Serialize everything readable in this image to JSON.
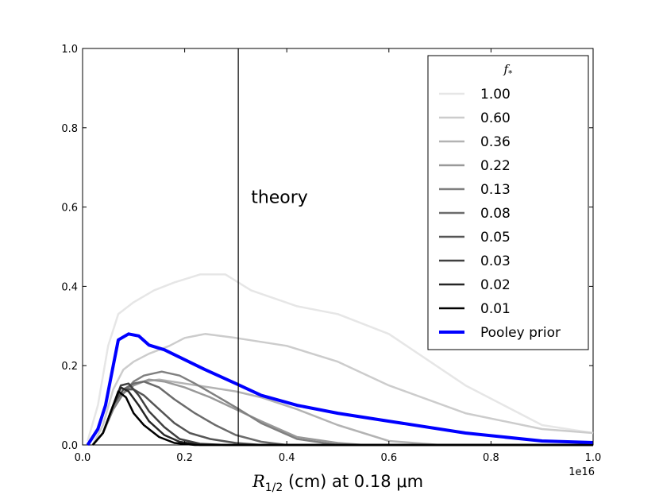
{
  "chart_data": {
    "type": "line",
    "xlabel_parts": {
      "symbol": "R",
      "subscript": "1/2",
      "rest": " (cm) at 0.18 μm"
    },
    "x_offset_text": "1e16",
    "xlim": [
      0.0,
      1.0
    ],
    "ylim": [
      0.0,
      1.0
    ],
    "xticks": [
      "0.0",
      "0.2",
      "0.4",
      "0.6",
      "0.8",
      "1.0"
    ],
    "yticks": [
      "0.0",
      "0.2",
      "0.4",
      "0.6",
      "0.8",
      "1.0"
    ],
    "annotation": {
      "text": "theory",
      "x": 0.33,
      "y": 0.61
    },
    "vline_x": 0.305,
    "legend_title": "f*",
    "legend_position": "top-right",
    "series": [
      {
        "name": "1.00",
        "color": "#e6e6e6",
        "width": 2.5,
        "x": [
          0.01,
          0.03,
          0.05,
          0.07,
          0.1,
          0.14,
          0.18,
          0.23,
          0.28,
          0.33,
          0.42,
          0.5,
          0.6,
          0.75,
          0.9,
          1.0
        ],
        "y": [
          0.01,
          0.1,
          0.25,
          0.33,
          0.36,
          0.39,
          0.41,
          0.43,
          0.43,
          0.39,
          0.35,
          0.33,
          0.28,
          0.15,
          0.05,
          0.03
        ]
      },
      {
        "name": "0.60",
        "color": "#cccccc",
        "width": 2.5,
        "x": [
          0.02,
          0.04,
          0.06,
          0.08,
          0.1,
          0.13,
          0.17,
          0.2,
          0.24,
          0.3,
          0.4,
          0.5,
          0.6,
          0.75,
          0.9,
          1.0
        ],
        "y": [
          0.0,
          0.05,
          0.14,
          0.19,
          0.21,
          0.23,
          0.25,
          0.27,
          0.28,
          0.27,
          0.25,
          0.21,
          0.15,
          0.08,
          0.04,
          0.03
        ]
      },
      {
        "name": "0.36",
        "color": "#b3b3b3",
        "width": 2.5,
        "x": [
          0.02,
          0.04,
          0.06,
          0.08,
          0.1,
          0.12,
          0.15,
          0.2,
          0.25,
          0.3,
          0.35,
          0.42,
          0.5,
          0.6,
          0.7,
          1.0
        ],
        "y": [
          0.0,
          0.03,
          0.1,
          0.14,
          0.155,
          0.16,
          0.165,
          0.155,
          0.145,
          0.135,
          0.12,
          0.09,
          0.05,
          0.01,
          0.0,
          0.0
        ]
      },
      {
        "name": "0.22",
        "color": "#999999",
        "width": 2.5,
        "x": [
          0.02,
          0.04,
          0.06,
          0.08,
          0.1,
          0.13,
          0.16,
          0.2,
          0.25,
          0.3,
          0.35,
          0.42,
          0.5,
          0.55,
          1.0
        ],
        "y": [
          0.0,
          0.03,
          0.09,
          0.13,
          0.15,
          0.165,
          0.16,
          0.145,
          0.12,
          0.09,
          0.06,
          0.02,
          0.005,
          0.0,
          0.0
        ]
      },
      {
        "name": "0.13",
        "color": "#808080",
        "width": 2.5,
        "x": [
          0.02,
          0.04,
          0.06,
          0.08,
          0.1,
          0.12,
          0.155,
          0.19,
          0.22,
          0.26,
          0.3,
          0.35,
          0.42,
          0.5,
          1.0
        ],
        "y": [
          0.0,
          0.03,
          0.09,
          0.13,
          0.16,
          0.175,
          0.185,
          0.175,
          0.155,
          0.125,
          0.095,
          0.055,
          0.015,
          0.0,
          0.0
        ]
      },
      {
        "name": "0.08",
        "color": "#6b6b6b",
        "width": 2.5,
        "x": [
          0.02,
          0.04,
          0.06,
          0.08,
          0.1,
          0.12,
          0.15,
          0.18,
          0.22,
          0.26,
          0.3,
          0.35,
          0.4,
          1.0
        ],
        "y": [
          0.0,
          0.03,
          0.1,
          0.14,
          0.155,
          0.16,
          0.145,
          0.115,
          0.08,
          0.05,
          0.025,
          0.008,
          0.0,
          0.0
        ]
      },
      {
        "name": "0.05",
        "color": "#555555",
        "width": 2.5,
        "x": [
          0.02,
          0.04,
          0.06,
          0.08,
          0.1,
          0.12,
          0.15,
          0.18,
          0.21,
          0.25,
          0.3,
          0.35,
          1.0
        ],
        "y": [
          0.0,
          0.03,
          0.1,
          0.14,
          0.14,
          0.125,
          0.09,
          0.055,
          0.03,
          0.015,
          0.005,
          0.0,
          0.0
        ]
      },
      {
        "name": "0.03",
        "color": "#404040",
        "width": 2.5,
        "x": [
          0.02,
          0.04,
          0.06,
          0.075,
          0.09,
          0.11,
          0.13,
          0.16,
          0.19,
          0.23,
          0.28,
          1.0
        ],
        "y": [
          0.0,
          0.03,
          0.1,
          0.15,
          0.155,
          0.125,
          0.085,
          0.045,
          0.015,
          0.003,
          0.0,
          0.0
        ]
      },
      {
        "name": "0.02",
        "color": "#262626",
        "width": 2.5,
        "x": [
          0.02,
          0.04,
          0.06,
          0.075,
          0.09,
          0.11,
          0.13,
          0.16,
          0.19,
          0.23,
          1.0
        ],
        "y": [
          0.0,
          0.03,
          0.1,
          0.145,
          0.135,
          0.1,
          0.06,
          0.025,
          0.008,
          0.0,
          0.0
        ]
      },
      {
        "name": "0.01",
        "color": "#000000",
        "width": 2.5,
        "x": [
          0.02,
          0.04,
          0.06,
          0.07,
          0.085,
          0.1,
          0.12,
          0.15,
          0.18,
          0.22,
          1.0
        ],
        "y": [
          0.0,
          0.03,
          0.1,
          0.135,
          0.12,
          0.08,
          0.05,
          0.02,
          0.005,
          0.0,
          0.0
        ]
      },
      {
        "name": "Pooley prior",
        "color": "#0000ff",
        "width": 4,
        "x": [
          0.01,
          0.03,
          0.045,
          0.06,
          0.07,
          0.09,
          0.11,
          0.13,
          0.16,
          0.2,
          0.24,
          0.3,
          0.35,
          0.42,
          0.5,
          0.6,
          0.75,
          0.9,
          1.0
        ],
        "y": [
          0.0,
          0.04,
          0.1,
          0.2,
          0.265,
          0.28,
          0.275,
          0.252,
          0.24,
          0.215,
          0.19,
          0.155,
          0.125,
          0.1,
          0.08,
          0.06,
          0.03,
          0.01,
          0.006
        ]
      }
    ]
  }
}
